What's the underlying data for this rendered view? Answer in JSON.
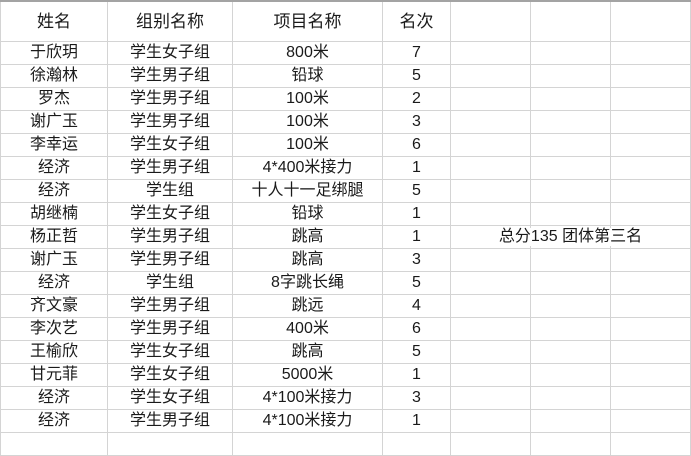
{
  "sheet": {
    "headers": [
      "姓名",
      "组别名称",
      "项目名称",
      "名次"
    ],
    "rows": [
      {
        "name": "于欣玥",
        "group": "学生女子组",
        "event": "800米",
        "rank": "7"
      },
      {
        "name": "徐瀚林",
        "group": "学生男子组",
        "event": "铅球",
        "rank": "5"
      },
      {
        "name": "罗杰",
        "group": "学生男子组",
        "event": "100米",
        "rank": "2"
      },
      {
        "name": "谢广玉",
        "group": "学生男子组",
        "event": "100米",
        "rank": "3"
      },
      {
        "name": "李幸运",
        "group": "学生女子组",
        "event": "100米",
        "rank": "6"
      },
      {
        "name": "经济",
        "group": "学生男子组",
        "event": "4*400米接力",
        "rank": "1"
      },
      {
        "name": "经济",
        "group": "学生组",
        "event": "十人十一足绑腿",
        "rank": "5"
      },
      {
        "name": "胡继楠",
        "group": "学生女子组",
        "event": "铅球",
        "rank": "1"
      },
      {
        "name": "杨正哲",
        "group": "学生男子组",
        "event": "跳高",
        "rank": "1"
      },
      {
        "name": "谢广玉",
        "group": "学生男子组",
        "event": "跳高",
        "rank": "3"
      },
      {
        "name": "经济",
        "group": "学生组",
        "event": "8字跳长绳",
        "rank": "5"
      },
      {
        "name": "齐文豪",
        "group": "学生男子组",
        "event": "跳远",
        "rank": "4"
      },
      {
        "name": "李次艺",
        "group": "学生男子组",
        "event": "400米",
        "rank": "6"
      },
      {
        "name": "王榆欣",
        "group": "学生女子组",
        "event": "跳高",
        "rank": "5"
      },
      {
        "name": "甘元菲",
        "group": "学生女子组",
        "event": "5000米",
        "rank": "1"
      },
      {
        "name": "经济",
        "group": "学生女子组",
        "event": "4*100米接力",
        "rank": "3"
      },
      {
        "name": "经济",
        "group": "学生男子组",
        "event": "4*100米接力",
        "rank": "1"
      }
    ],
    "note": {
      "text": "总分135 团体第三名",
      "row_index": 8
    },
    "empty_column_count": 3,
    "colors": {
      "gridline": "#d4d4d4",
      "top_border": "#a3a3a3",
      "text": "#1a1a1a",
      "background": "#ffffff"
    }
  }
}
